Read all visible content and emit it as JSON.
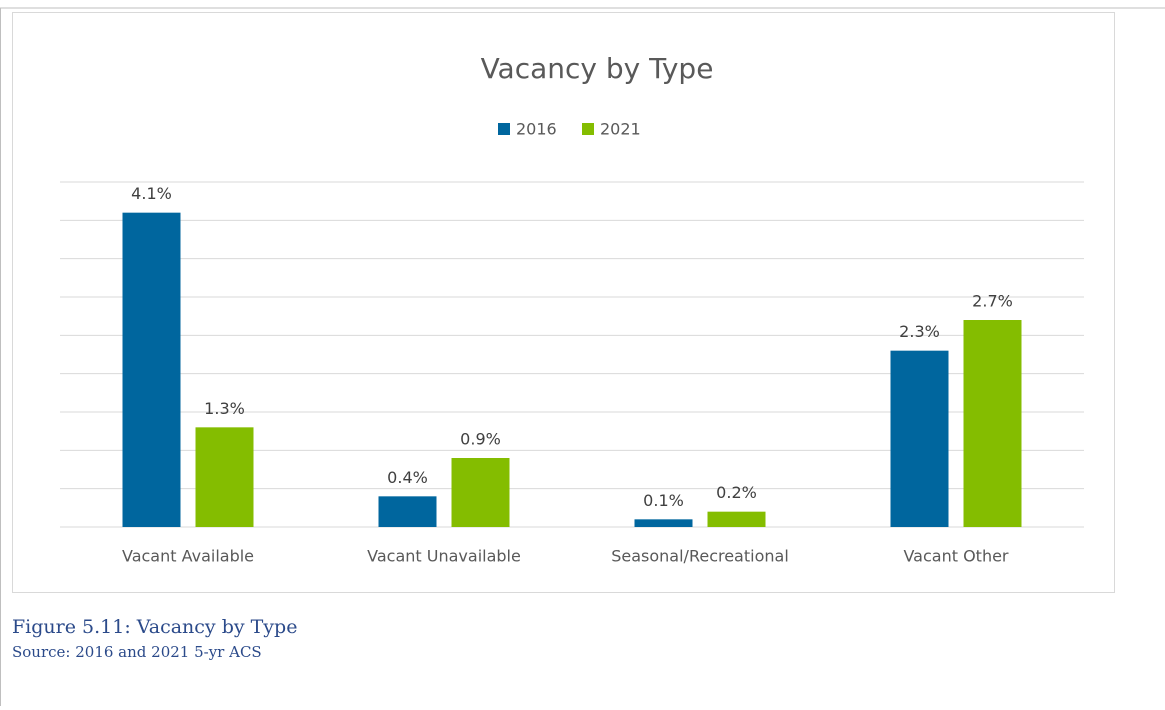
{
  "chart_data": {
    "type": "bar",
    "title": "Vacancy by Type",
    "categories": [
      "Vacant Available",
      "Vacant Unavailable",
      "Seasonal/Recreational",
      "Vacant Other"
    ],
    "series": [
      {
        "name": "2016",
        "color": "#00669e",
        "values": [
          4.1,
          0.4,
          0.1,
          2.3
        ],
        "value_labels": [
          "4.1%",
          "0.4%",
          "0.1%",
          "2.3%"
        ]
      },
      {
        "name": "2021",
        "color": "#84bd00",
        "values": [
          1.3,
          0.9,
          0.2,
          2.7
        ],
        "value_labels": [
          "1.3%",
          "0.9%",
          "0.2%",
          "2.7%"
        ]
      }
    ],
    "ylim": [
      0,
      4.5
    ],
    "yticks": [
      0,
      0.5,
      1,
      1.5,
      2,
      2.5,
      3,
      3.5,
      4,
      4.5
    ],
    "grid": true,
    "legend": "top"
  },
  "caption": "Figure 5.11: Vacancy by Type",
  "source": "Source: 2016 and 2021 5-yr ACS"
}
